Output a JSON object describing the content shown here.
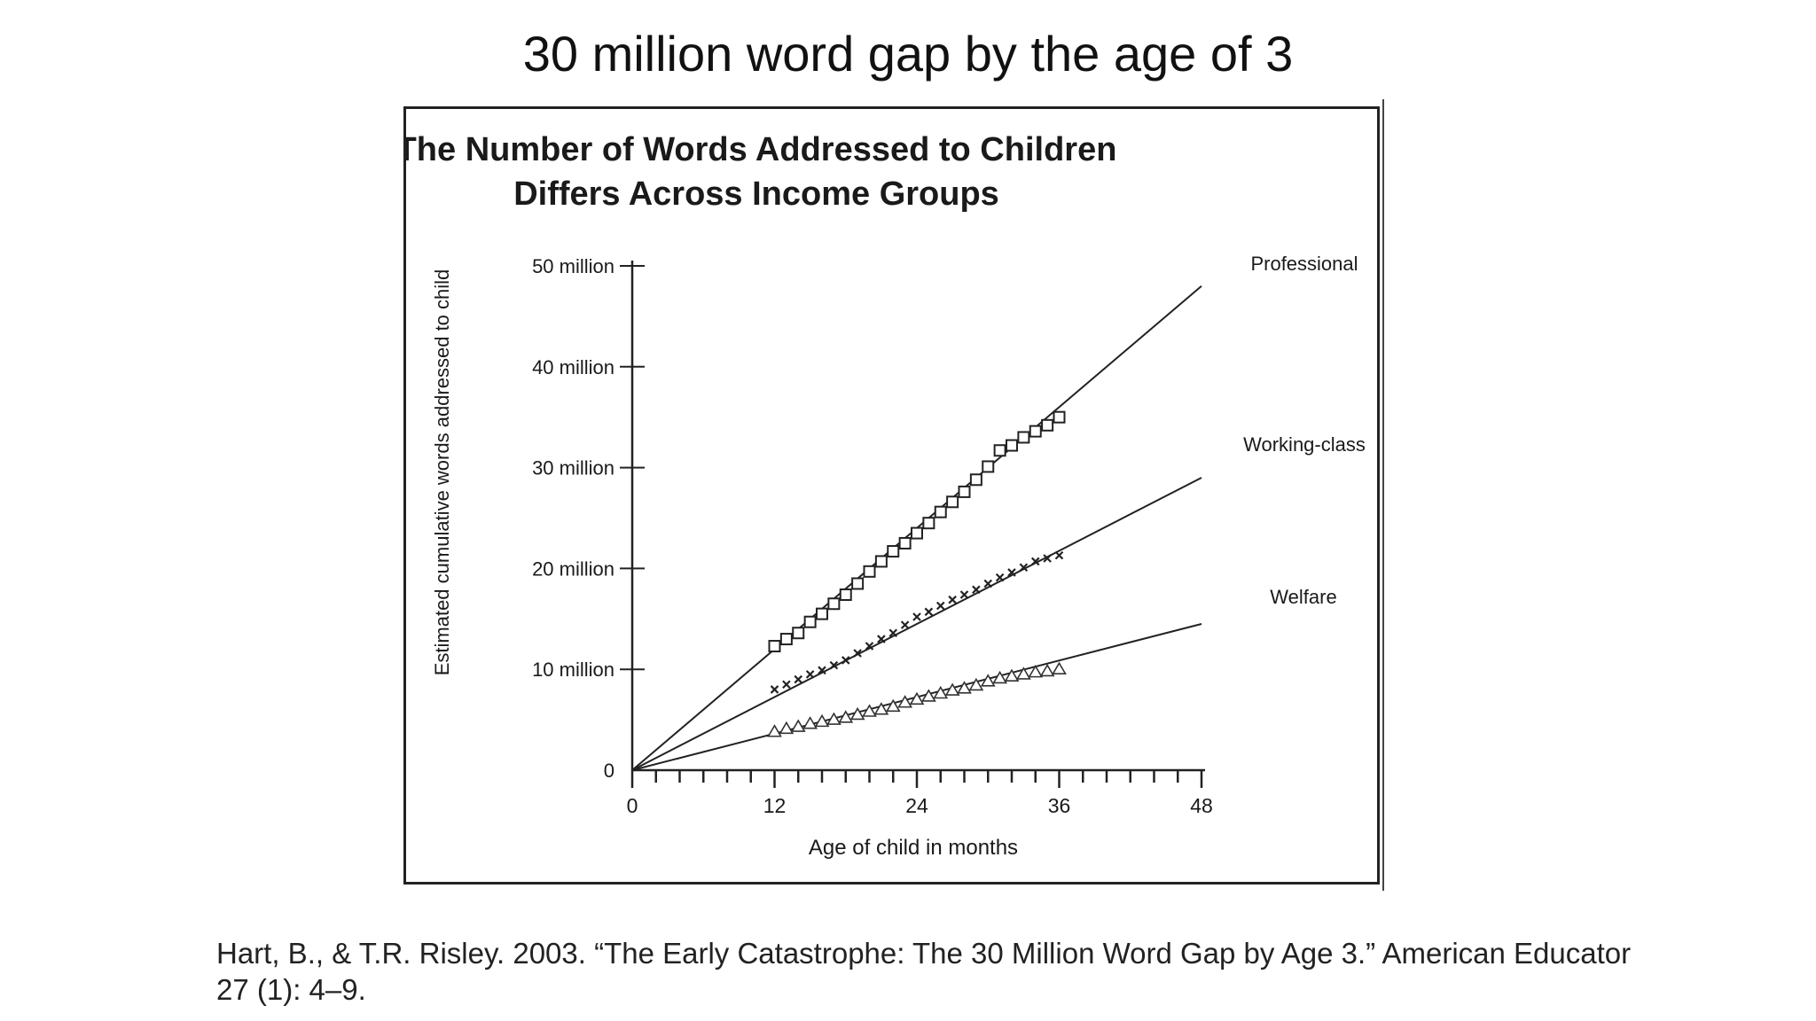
{
  "slide": {
    "title": "30 million word gap by the age of 3",
    "citation": "Hart, B., & T.R. Risley. 2003. “The Early Catastrophe: The 30 Million Word Gap by Age 3.” American Educator 27 (1): 4–9."
  },
  "chart_data": {
    "type": "line",
    "title": "The Number of Words Addressed to Children Differs Across Income Groups",
    "title_lines": [
      "The Number of Words Addressed to Children",
      "Differs Across Income Groups"
    ],
    "xlabel": "Age of child in months",
    "ylabel": "Estimated cumulative words addressed to child",
    "xlim": [
      0,
      48
    ],
    "ylim": [
      0,
      50000000
    ],
    "x_ticks": [
      0,
      12,
      24,
      36,
      48
    ],
    "x_tick_labels": [
      "0",
      "12",
      "24",
      "36",
      "48"
    ],
    "y_ticks": [
      0,
      10000000,
      20000000,
      30000000,
      40000000,
      50000000
    ],
    "y_tick_labels": [
      "0",
      "10 million",
      "20 million",
      "30 million",
      "40 million",
      "50 million"
    ],
    "minor_x_tick_step": 2,
    "grid": false,
    "legend": "line-end labels (right)",
    "series": [
      {
        "name": "Professional",
        "marker": "square",
        "trend_end": [
          48,
          48000000
        ],
        "x": [
          12,
          13,
          14,
          15,
          16,
          17,
          18,
          19,
          20,
          21,
          22,
          23,
          24,
          25,
          26,
          27,
          28,
          29,
          30,
          31,
          32,
          33,
          34,
          35,
          36
        ],
        "y": [
          12300000,
          13000000,
          13600000,
          14700000,
          15500000,
          16500000,
          17400000,
          18500000,
          19700000,
          20700000,
          21700000,
          22500000,
          23500000,
          24500000,
          25600000,
          26600000,
          27600000,
          28800000,
          30100000,
          31700000,
          32200000,
          33000000,
          33600000,
          34200000,
          35000000
        ]
      },
      {
        "name": "Working-class",
        "marker": "cross",
        "trend_end": [
          48,
          29000000
        ],
        "x": [
          12,
          13,
          14,
          15,
          16,
          17,
          18,
          19,
          20,
          21,
          22,
          23,
          24,
          25,
          26,
          27,
          28,
          29,
          30,
          31,
          32,
          33,
          34,
          35,
          36
        ],
        "y": [
          8000000,
          8500000,
          9000000,
          9500000,
          9900000,
          10400000,
          10900000,
          11600000,
          12300000,
          13000000,
          13600000,
          14400000,
          15200000,
          15700000,
          16300000,
          16900000,
          17400000,
          17900000,
          18500000,
          19100000,
          19600000,
          20100000,
          20700000,
          21000000,
          21300000
        ]
      },
      {
        "name": "Welfare",
        "marker": "triangle",
        "trend_end": [
          48,
          14500000
        ],
        "x": [
          12,
          13,
          14,
          15,
          16,
          17,
          18,
          19,
          20,
          21,
          22,
          23,
          24,
          25,
          26,
          27,
          28,
          29,
          30,
          31,
          32,
          33,
          34,
          35,
          36
        ],
        "y": [
          3800000,
          4100000,
          4300000,
          4600000,
          4800000,
          5000000,
          5200000,
          5500000,
          5800000,
          6000000,
          6300000,
          6700000,
          7000000,
          7300000,
          7600000,
          7900000,
          8100000,
          8400000,
          8800000,
          9100000,
          9300000,
          9500000,
          9700000,
          9800000,
          10000000
        ]
      }
    ]
  }
}
